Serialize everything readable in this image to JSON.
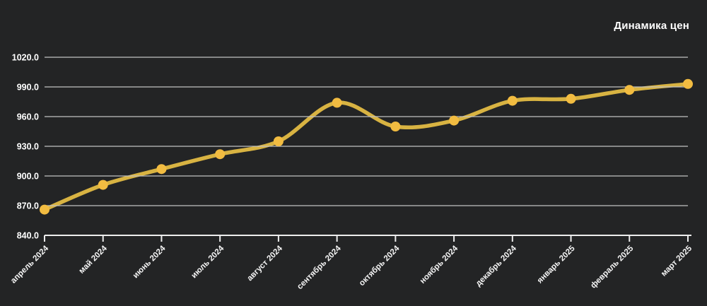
{
  "colors": {
    "background": "#232425",
    "line": "#D8B342",
    "marker": "#F2BC41",
    "grid": "#C2C2C2",
    "axis": "#EDEDED",
    "text": "#FFFFFF",
    "tick_text": "#F5F5F5"
  },
  "chart_data": {
    "type": "line",
    "title": "Динамика цен",
    "categories": [
      "апрель 2024",
      "май 2024",
      "июнь 2024",
      "июль 2024",
      "август 2024",
      "сентябрь 2024",
      "октябрь 2024",
      "ноябрь 2024",
      "декабрь 2024",
      "январь 2025",
      "февраль 2025",
      "март 2025"
    ],
    "values": [
      866,
      891,
      907,
      922,
      935,
      974,
      950,
      956,
      976,
      978,
      987,
      993
    ],
    "xlabel": "",
    "ylabel": "",
    "ylim": [
      840,
      1020
    ],
    "ytick_step": 30,
    "ytick_labels": [
      "840.0",
      "870.0",
      "900.0",
      "930.0",
      "960.0",
      "990.0",
      "1020.0"
    ],
    "grid": true,
    "legend": "none",
    "smooth": true,
    "x_label_rotation": -45
  }
}
